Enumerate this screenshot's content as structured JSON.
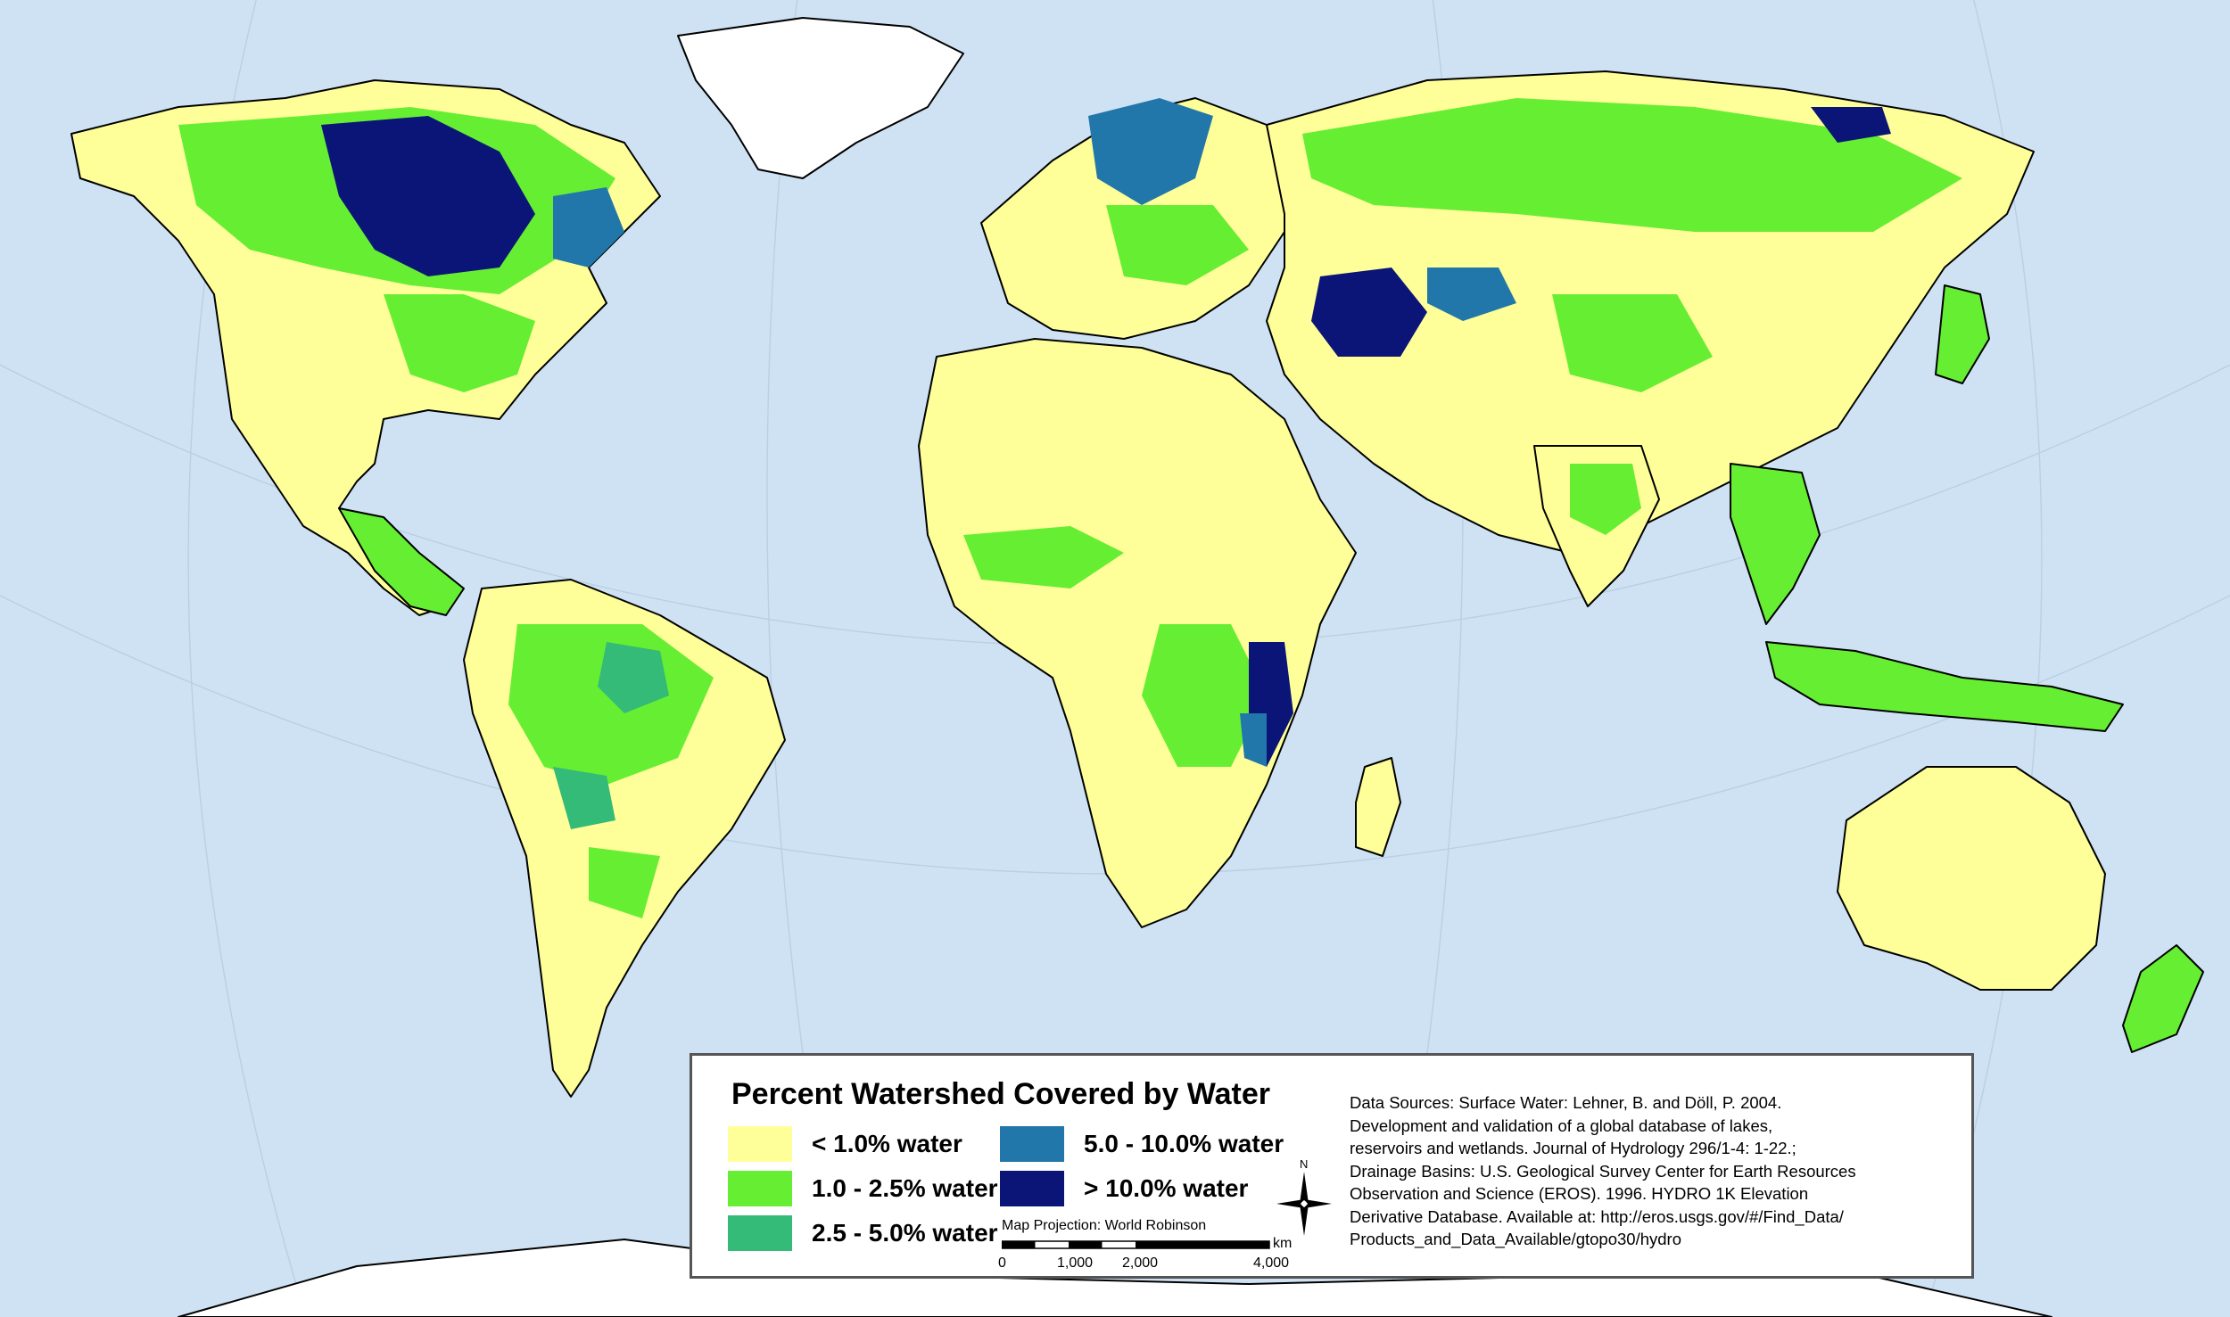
{
  "legend": {
    "title": "Percent Watershed Covered by Water",
    "items": [
      {
        "label": "< 1.0% water",
        "color": "#ffff99"
      },
      {
        "label": "1.0 - 2.5% water",
        "color": "#66ee33"
      },
      {
        "label": "2.5 - 5.0% water",
        "color": "#33bb77"
      },
      {
        "label": "5.0 - 10.0% water",
        "color": "#2277aa"
      },
      {
        "label": "> 10.0% water",
        "color": "#0a1577"
      }
    ]
  },
  "projection_label": "Map Projection: World Robinson",
  "scale": {
    "ticks": [
      "0",
      "1,000",
      "2,000",
      "4,000"
    ],
    "unit": "km"
  },
  "north_label": "N",
  "sources": [
    "Data Sources: Surface Water: Lehner, B. and Döll, P. 2004.",
    "Development and validation of a global database of lakes,",
    "reservoirs and wetlands. Journal of Hydrology 296/1-4: 1-22.;",
    "Drainage Basins: U.S. Geological Survey Center for Earth Resources",
    "Observation and Science (EROS). 1996. HYDRO 1K Elevation",
    "Derivative Database. Available at: http://eros.usgs.gov/#/Find_Data/",
    "Products_and_Data_Available/gtopo30/hydro"
  ],
  "colors": {
    "ocean": "#cfe2f3",
    "ice": "#ffffff",
    "border": "#000000"
  }
}
